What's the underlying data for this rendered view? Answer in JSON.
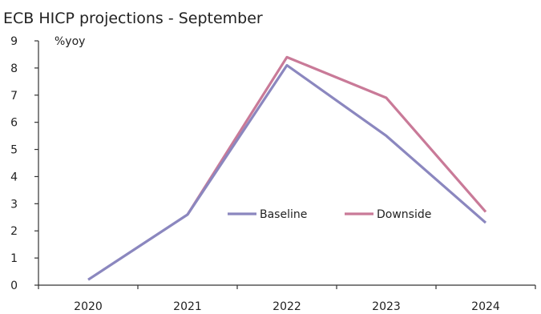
{
  "chart_data": {
    "type": "line",
    "title": "ECB HICP projections - September",
    "ylabel": "%yoy",
    "xlabel": "",
    "categories": [
      "2020",
      "2021",
      "2022",
      "2023",
      "2024"
    ],
    "yticks": [
      "0",
      "1",
      "2",
      "3",
      "4",
      "5",
      "6",
      "7",
      "8",
      "9"
    ],
    "ylim": [
      0,
      9
    ],
    "grid": false,
    "legend_position": "inside-center",
    "series": [
      {
        "name": "Baseline",
        "color": "#8B87BF",
        "values": [
          0.2,
          2.6,
          8.1,
          5.5,
          2.3
        ]
      },
      {
        "name": "Downside",
        "color": "#C97A98",
        "values": [
          null,
          null,
          8.4,
          6.9,
          2.7
        ]
      }
    ]
  }
}
